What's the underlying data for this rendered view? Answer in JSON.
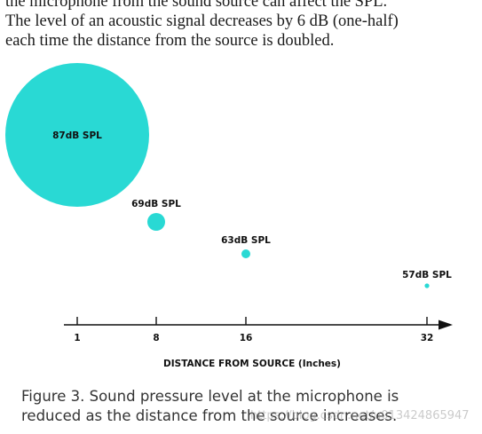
{
  "body_text": {
    "line1": "the microphone from the sound source can affect the SPL.",
    "line2": "The level of an acoustic signal decreases by 6 dB (one-half)",
    "line3": "each time the distance from the source is doubled."
  },
  "colors": {
    "circle": "#29d9d4",
    "axis": "#111111"
  },
  "points": [
    {
      "distance": "1",
      "label": "87dB SPL"
    },
    {
      "distance": "8",
      "label": "69dB SPL"
    },
    {
      "distance": "16",
      "label": "63dB SPL"
    },
    {
      "distance": "32",
      "label": "57dB SPL"
    }
  ],
  "axis_label": "DISTANCE FROM SOURCE (Inches)",
  "caption": {
    "line1": "Figure 3. Sound pressure level at the microphone is",
    "line2": "reduced as the distance from the source increases."
  },
  "watermark": "https://blog.csdn.net/u013424865947"
}
